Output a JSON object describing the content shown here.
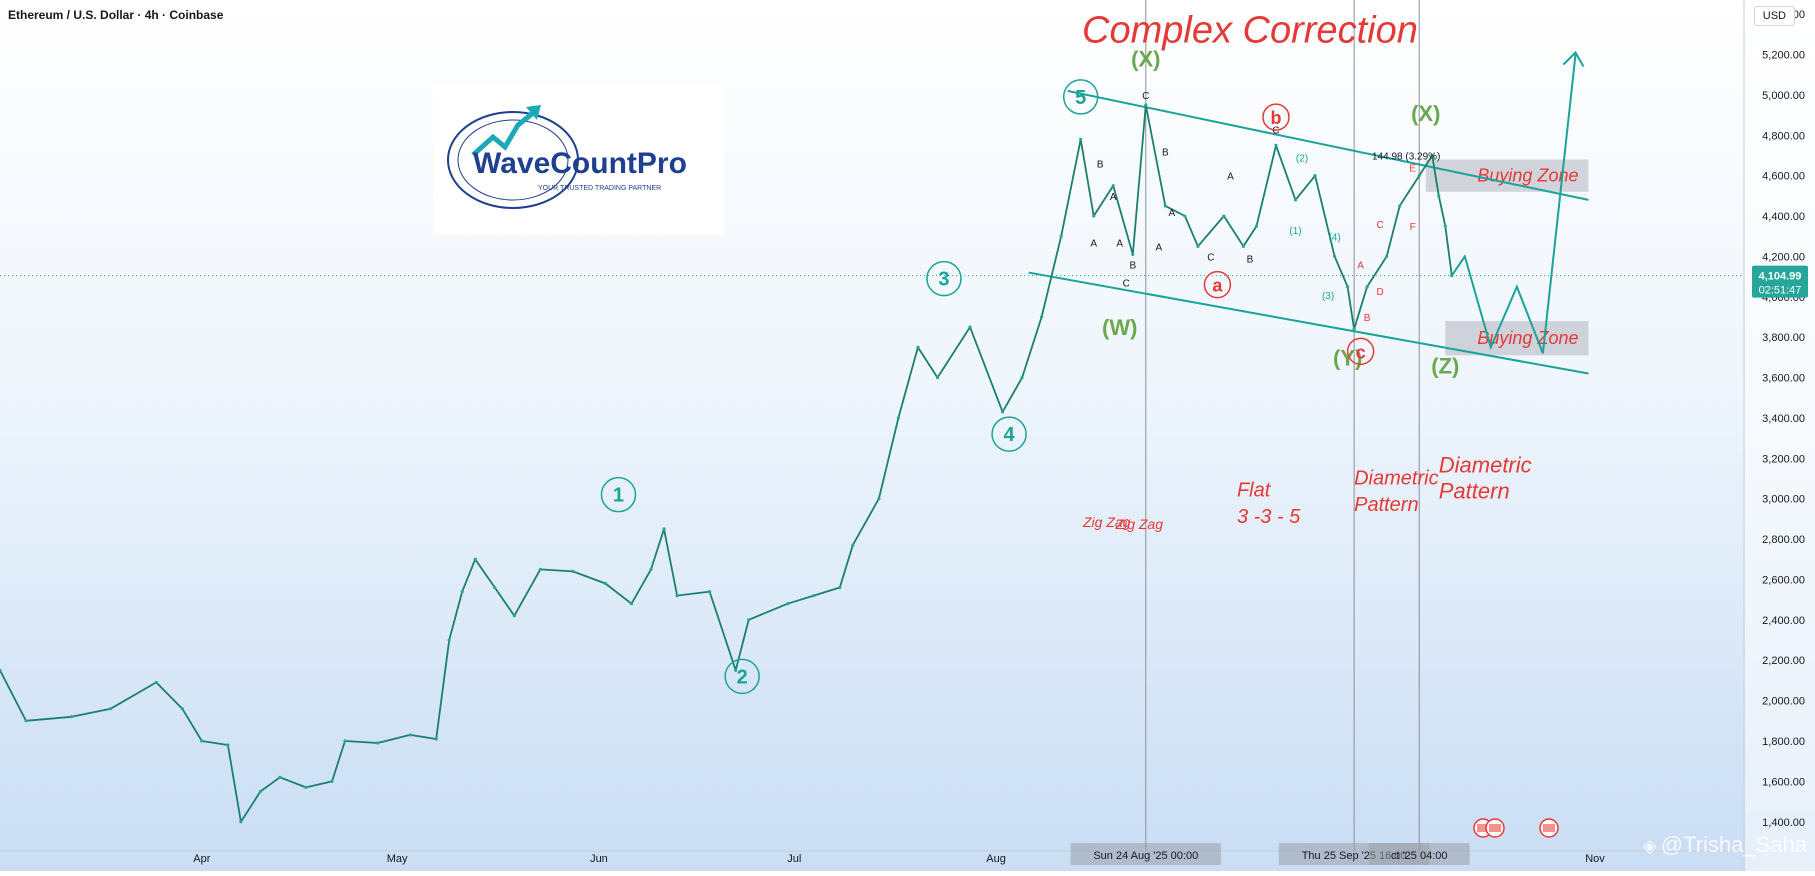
{
  "header": {
    "symbol_line": "Ethereum / U.S. Dollar · 4h · Coinbase",
    "currency": "USD"
  },
  "logo": {
    "brand": "WaveCountPro",
    "tagline": "YOUR TRUSTED TRADING PARTNER"
  },
  "watermark": "@Trisha_Saha",
  "price_tag": {
    "price": "4,104.99",
    "countdown": "02:51:47"
  },
  "chart_data": {
    "type": "line",
    "subtitle": "Ethereum / U.S. Dollar · 4h · Coinbase",
    "title": "Complex Correction",
    "y_ticks": [
      1400,
      1600,
      1800,
      2000,
      2200,
      2400,
      2600,
      2800,
      3000,
      3200,
      3400,
      3600,
      3800,
      4000,
      4200,
      4400,
      4600,
      4800,
      5000,
      5200,
      5400
    ],
    "y_tick_labels": [
      "1,400.00",
      "1,600.00",
      "1,800.00",
      "2,000.00",
      "2,200.00",
      "2,400.00",
      "2,600.00",
      "2,800.00",
      "3,000.00",
      "3,200.00",
      "3,400.00",
      "3,600.00",
      "3,800.00",
      "4,000.00",
      "4,200.00",
      "4,400.00",
      "4,600.00",
      "4,800.00",
      "5,000.00",
      "5,200.00",
      "5,400.00"
    ],
    "ylim": [
      1270,
      5470
    ],
    "x_range": [
      "2025-03-01",
      "2025-11-01"
    ],
    "x_labels": [
      {
        "date": "2025-04-01",
        "label": "Apr"
      },
      {
        "date": "2025-05-01",
        "label": "May"
      },
      {
        "date": "2025-06-01",
        "label": "Jun"
      },
      {
        "date": "2025-07-01",
        "label": "Jul"
      },
      {
        "date": "2025-08-01",
        "label": "Aug"
      },
      {
        "date": "2025-11-01",
        "label": "Nov"
      }
    ],
    "x_highlight_labels": [
      {
        "date": "2025-08-24",
        "label": "Sun 24 Aug '25   00:00"
      },
      {
        "date": "2025-09-25",
        "label": "Thu 25 Sep '25   16:00"
      },
      {
        "date": "2025-10-05",
        "label": "ct '25   04:00"
      }
    ],
    "vertical_lines": [
      "2025-08-24",
      "2025-09-25",
      "2025-10-05"
    ],
    "current_price": 4104.99,
    "price_path": [
      [
        "2025-03-01",
        2150
      ],
      [
        "2025-03-05",
        1900
      ],
      [
        "2025-03-12",
        1920
      ],
      [
        "2025-03-18",
        1960
      ],
      [
        "2025-03-25",
        2090
      ],
      [
        "2025-03-29",
        1960
      ],
      [
        "2025-04-01",
        1800
      ],
      [
        "2025-04-05",
        1780
      ],
      [
        "2025-04-07",
        1400
      ],
      [
        "2025-04-10",
        1550
      ],
      [
        "2025-04-13",
        1620
      ],
      [
        "2025-04-17",
        1570
      ],
      [
        "2025-04-21",
        1600
      ],
      [
        "2025-04-23",
        1800
      ],
      [
        "2025-04-28",
        1790
      ],
      [
        "2025-05-03",
        1830
      ],
      [
        "2025-05-07",
        1810
      ],
      [
        "2025-05-09",
        2300
      ],
      [
        "2025-05-11",
        2540
      ],
      [
        "2025-05-13",
        2700
      ],
      [
        "2025-05-16",
        2560
      ],
      [
        "2025-05-19",
        2420
      ],
      [
        "2025-05-23",
        2650
      ],
      [
        "2025-05-28",
        2640
      ],
      [
        "2025-06-02",
        2580
      ],
      [
        "2025-06-06",
        2480
      ],
      [
        "2025-06-09",
        2650
      ],
      [
        "2025-06-11",
        2850
      ],
      [
        "2025-06-13",
        2520
      ],
      [
        "2025-06-18",
        2540
      ],
      [
        "2025-06-22",
        2150
      ],
      [
        "2025-06-24",
        2400
      ],
      [
        "2025-06-30",
        2480
      ],
      [
        "2025-07-04",
        2520
      ],
      [
        "2025-07-08",
        2560
      ],
      [
        "2025-07-10",
        2770
      ],
      [
        "2025-07-14",
        3000
      ],
      [
        "2025-07-17",
        3400
      ],
      [
        "2025-07-20",
        3750
      ],
      [
        "2025-07-23",
        3600
      ],
      [
        "2025-07-28",
        3850
      ],
      [
        "2025-08-02",
        3430
      ],
      [
        "2025-08-05",
        3600
      ],
      [
        "2025-08-08",
        3900
      ],
      [
        "2025-08-11",
        4300
      ],
      [
        "2025-08-14",
        4780
      ],
      [
        "2025-08-16",
        4400
      ],
      [
        "2025-08-19",
        4550
      ],
      [
        "2025-08-22",
        4210
      ],
      [
        "2025-08-24",
        4950
      ],
      [
        "2025-08-27",
        4450
      ],
      [
        "2025-08-30",
        4400
      ],
      [
        "2025-09-01",
        4250
      ],
      [
        "2025-09-05",
        4400
      ],
      [
        "2025-09-08",
        4250
      ],
      [
        "2025-09-10",
        4350
      ],
      [
        "2025-09-13",
        4750
      ],
      [
        "2025-09-16",
        4480
      ],
      [
        "2025-09-19",
        4600
      ],
      [
        "2025-09-22",
        4200
      ],
      [
        "2025-09-24",
        4050
      ],
      [
        "2025-09-25",
        3840
      ],
      [
        "2025-09-27",
        4050
      ],
      [
        "2025-09-30",
        4200
      ],
      [
        "2025-10-02",
        4450
      ],
      [
        "2025-10-05",
        4600
      ],
      [
        "2025-10-07",
        4700
      ],
      [
        "2025-10-08",
        4500
      ],
      [
        "2025-10-09",
        4350
      ],
      [
        "2025-10-10",
        4104.99
      ]
    ],
    "forecast_path": [
      [
        "2025-10-10",
        4104.99
      ],
      [
        "2025-10-12",
        4200
      ],
      [
        "2025-10-16",
        3750
      ],
      [
        "2025-10-20",
        4050
      ],
      [
        "2025-10-24",
        3720
      ],
      [
        "2025-10-29",
        5200
      ]
    ],
    "channel_upper": [
      [
        "2025-08-12",
        5020
      ],
      [
        "2025-10-31",
        4480
      ]
    ],
    "channel_lower": [
      [
        "2025-08-06",
        4120
      ],
      [
        "2025-10-31",
        3620
      ]
    ],
    "zones": [
      {
        "label": "Buying Zone",
        "from": "2025-10-06",
        "to": "2025-10-31",
        "y1": 4520,
        "y2": 4680
      },
      {
        "label": "Buying Zone",
        "from": "2025-10-09",
        "to": "2025-10-31",
        "y1": 3710,
        "y2": 3880
      }
    ],
    "wave_labels": [
      {
        "text": "1",
        "date": "2025-06-04",
        "price": 3020,
        "style": "circle-teal"
      },
      {
        "text": "2",
        "date": "2025-06-23",
        "price": 2120,
        "style": "circle-teal"
      },
      {
        "text": "3",
        "date": "2025-07-24",
        "price": 4090,
        "style": "circle-teal"
      },
      {
        "text": "4",
        "date": "2025-08-03",
        "price": 3320,
        "style": "circle-teal"
      },
      {
        "text": "5",
        "date": "2025-08-14",
        "price": 4990,
        "style": "circle-teal"
      },
      {
        "text": "(X)",
        "date": "2025-08-24",
        "price": 5140,
        "style": "green"
      },
      {
        "text": "(W)",
        "date": "2025-08-20",
        "price": 3810,
        "style": "green"
      },
      {
        "text": "(Y)",
        "date": "2025-09-24",
        "price": 3660,
        "style": "green"
      },
      {
        "text": "(X)",
        "date": "2025-10-06",
        "price": 4870,
        "style": "green"
      },
      {
        "text": "(Z)",
        "date": "2025-10-09",
        "price": 3620,
        "style": "green"
      },
      {
        "text": "b",
        "date": "2025-09-13",
        "price": 4890,
        "style": "circle-red"
      },
      {
        "text": "a",
        "date": "2025-09-04",
        "price": 4060,
        "style": "circle-red"
      },
      {
        "text": "c",
        "date": "2025-09-26",
        "price": 3730,
        "style": "circle-red"
      }
    ],
    "annotations": [
      {
        "text": "Complex Correction",
        "date": "2025-09-09",
        "price": 5260,
        "style": "title"
      },
      {
        "text": "Zig Zag",
        "date": "2025-08-18",
        "price": 2860,
        "style": "red-small"
      },
      {
        "text": "Zig Zag",
        "date": "2025-08-23",
        "price": 2850,
        "style": "red-small"
      },
      {
        "text": "Flat",
        "date": "2025-09-07",
        "price": 3010,
        "style": "red-mid"
      },
      {
        "text": "3 -3 - 5",
        "date": "2025-09-07",
        "price": 2880,
        "style": "red-mid"
      },
      {
        "text": "Diametric",
        "date": "2025-09-25",
        "price": 3070,
        "style": "red-mid"
      },
      {
        "text": "Pattern",
        "date": "2025-09-25",
        "price": 2940,
        "style": "red-mid"
      },
      {
        "text": "Diametric",
        "date": "2025-10-08",
        "price": 3130,
        "style": "red-big"
      },
      {
        "text": "Pattern",
        "date": "2025-10-08",
        "price": 3000,
        "style": "red-big"
      },
      {
        "text": "A",
        "date": "2025-08-16",
        "price": 4250,
        "style": "sub-black"
      },
      {
        "text": "B",
        "date": "2025-08-17",
        "price": 4640,
        "style": "sub-black"
      },
      {
        "text": "A",
        "date": "2025-08-19",
        "price": 4480,
        "style": "sub-black"
      },
      {
        "text": "A",
        "date": "2025-08-20",
        "price": 4250,
        "style": "sub-black"
      },
      {
        "text": "B",
        "date": "2025-08-22",
        "price": 4140,
        "style": "sub-black"
      },
      {
        "text": "C",
        "date": "2025-08-21",
        "price": 4050,
        "style": "sub-black"
      },
      {
        "text": "C",
        "date": "2025-08-24",
        "price": 4980,
        "style": "sub-black"
      },
      {
        "text": "B",
        "date": "2025-08-27",
        "price": 4700,
        "style": "sub-black"
      },
      {
        "text": "A",
        "date": "2025-08-26",
        "price": 4230,
        "style": "sub-black"
      },
      {
        "text": "A",
        "date": "2025-09-06",
        "price": 4580,
        "style": "sub-black"
      },
      {
        "text": "C",
        "date": "2025-09-03",
        "price": 4180,
        "style": "sub-black"
      },
      {
        "text": "B",
        "date": "2025-09-09",
        "price": 4170,
        "style": "sub-black"
      },
      {
        "text": "C",
        "date": "2025-09-13",
        "price": 4810,
        "style": "sub-black"
      },
      {
        "text": "A",
        "date": "2025-08-28",
        "price": 4400,
        "style": "sub-black"
      },
      {
        "text": "(1)",
        "date": "2025-09-16",
        "price": 4310,
        "style": "sub-teal"
      },
      {
        "text": "(2)",
        "date": "2025-09-17",
        "price": 4670,
        "style": "sub-teal"
      },
      {
        "text": "(3)",
        "date": "2025-09-21",
        "price": 3990,
        "style": "sub-teal"
      },
      {
        "text": "(4)",
        "date": "2025-09-22",
        "price": 4280,
        "style": "sub-teal"
      },
      {
        "text": "A",
        "date": "2025-09-26",
        "price": 4140,
        "style": "sub-red"
      },
      {
        "text": "B",
        "date": "2025-09-27",
        "price": 3880,
        "style": "sub-red"
      },
      {
        "text": "C",
        "date": "2025-09-29",
        "price": 4340,
        "style": "sub-red"
      },
      {
        "text": "D",
        "date": "2025-09-29",
        "price": 4010,
        "style": "sub-red"
      },
      {
        "text": "E",
        "date": "2025-10-04",
        "price": 4620,
        "style": "sub-red"
      },
      {
        "text": "F",
        "date": "2025-10-04",
        "price": 4330,
        "style": "sub-red"
      },
      {
        "text": "144.98 (3.29%)",
        "date": "2025-10-03",
        "price": 4680,
        "style": "measure"
      }
    ]
  }
}
